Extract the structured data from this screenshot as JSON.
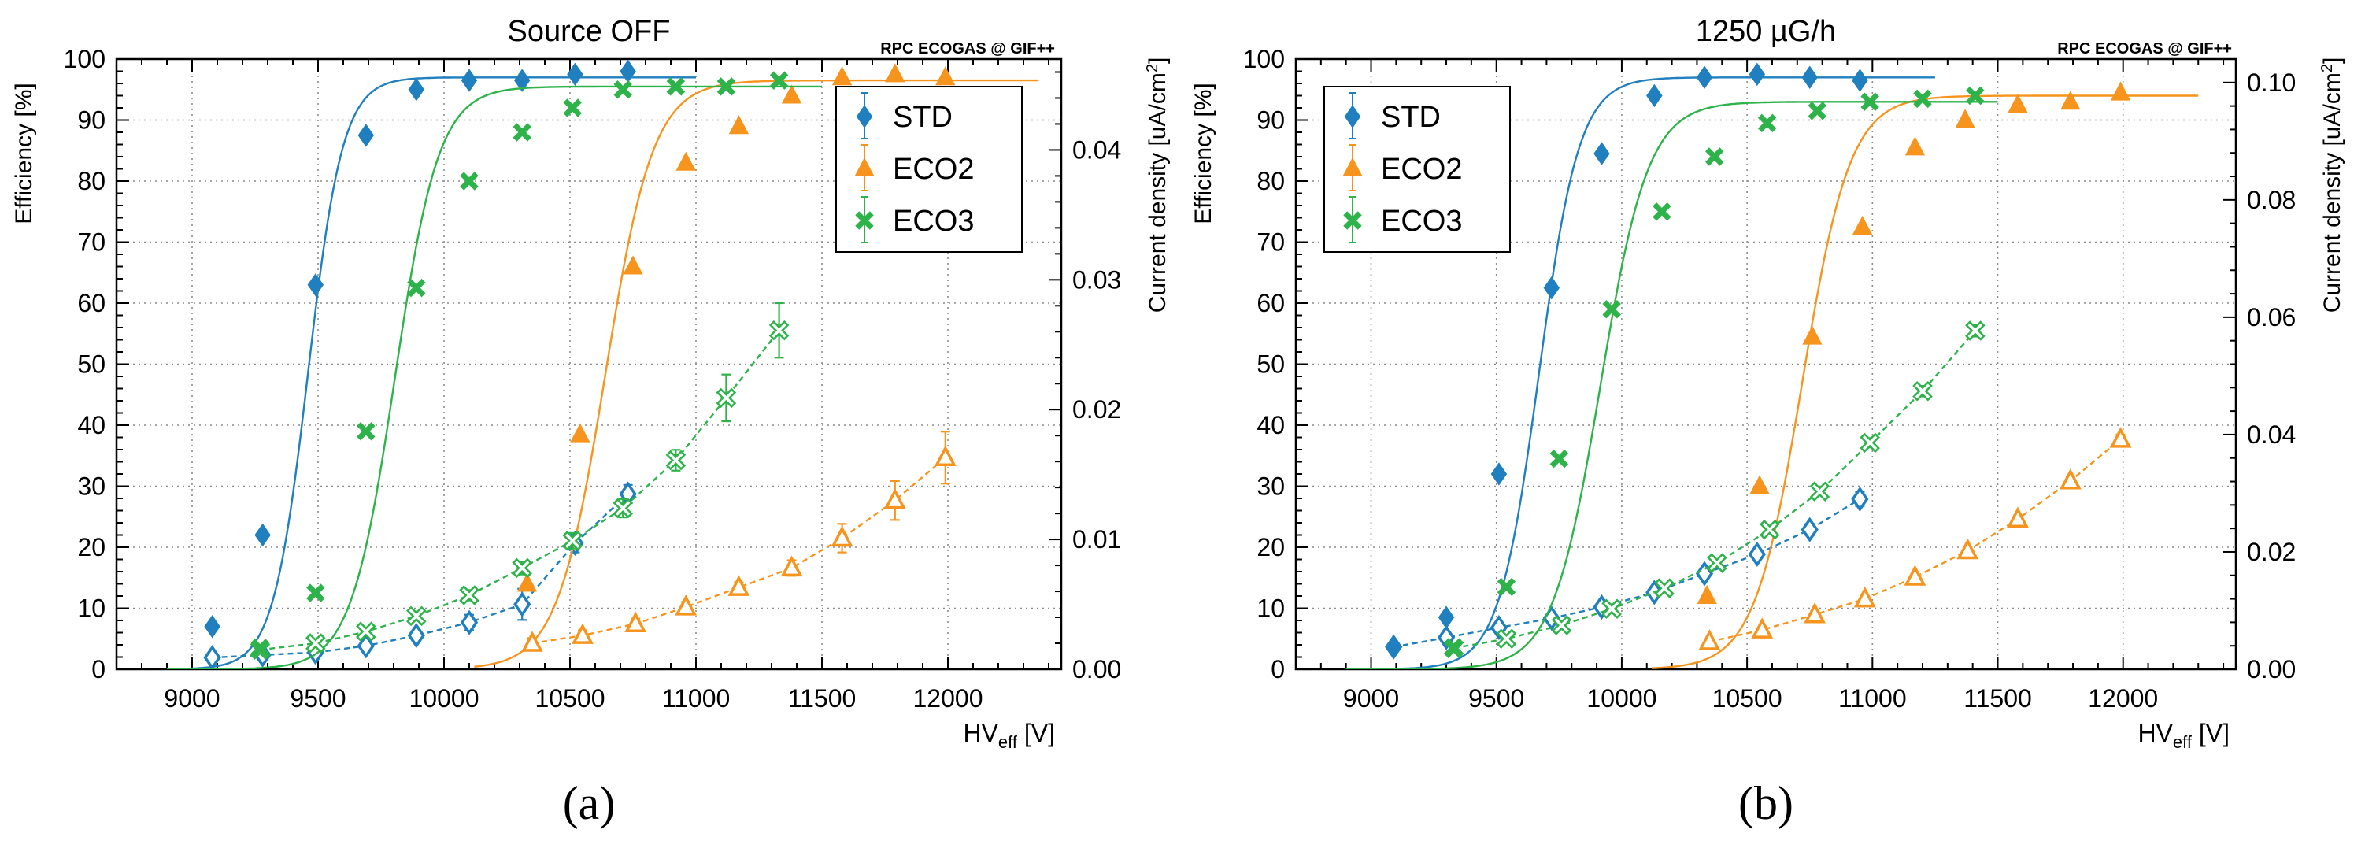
{
  "colors": {
    "std": "#1f7fbf",
    "eco2": "#f7941d",
    "eco3": "#2db34a",
    "grid": "#8c8c8c",
    "axis": "#000000"
  },
  "chart_data": [
    {
      "type": "scatter",
      "panel_label": "(a)",
      "title": "Source OFF",
      "watermark": "RPC ECOGAS @ GIF++",
      "xlabel": "HVeff [V]",
      "xlabel_main": "HV",
      "xlabel_sub": "eff",
      "xlabel_unit": " [V]",
      "ylabel": "Efficiency [%]",
      "y2label": "Current density [uA/cm2]",
      "y2label_main": "Current density [uA/cm",
      "y2label_sup": "2",
      "y2label_end": "]",
      "xlim": [
        8700,
        12450
      ],
      "ylim": [
        0,
        100
      ],
      "y2lim": [
        0,
        0.047
      ],
      "xticks": [
        9000,
        9500,
        10000,
        10500,
        11000,
        11500,
        12000
      ],
      "xtick_labels": [
        "9000",
        "9500",
        "10000",
        "10500",
        "11000",
        "11500",
        "12000"
      ],
      "yticks": [
        0,
        10,
        20,
        30,
        40,
        50,
        60,
        70,
        80,
        90,
        100
      ],
      "ytick_labels": [
        "0",
        "10",
        "20",
        "30",
        "40",
        "50",
        "60",
        "70",
        "80",
        "90",
        "100"
      ],
      "y2ticks": [
        0,
        0.01,
        0.02,
        0.03,
        0.04
      ],
      "y2tick_labels": [
        "0.00",
        "0.01",
        "0.02",
        "0.03",
        "0.04"
      ],
      "grid": true,
      "legend": {
        "position": "top-right",
        "entries": [
          "STD",
          "ECO2",
          "ECO3"
        ]
      },
      "series": [
        {
          "name": "STD",
          "color": "#1f7fbf",
          "marker": "diamond",
          "efficiency": {
            "x": [
              9080,
              9280,
              9490,
              9690,
              9890,
              10100,
              10310,
              10520,
              10730
            ],
            "y": [
              7,
              22,
              63,
              87.5,
              95,
              96.5,
              96.5,
              97.5,
              98
            ]
          },
          "fit": {
            "plateau": 97,
            "hv50": 9460,
            "lambda": 0.0145,
            "range": [
              8900,
              11000
            ]
          },
          "current": {
            "x": [
              9080,
              9280,
              9490,
              9690,
              9890,
              10100,
              10310,
              10520,
              10730
            ],
            "y": [
              0.0009,
              0.0011,
              0.0013,
              0.0018,
              0.0026,
              0.0036,
              0.005,
              0.0097,
              0.0135
            ],
            "err": [
              0.0003,
              0.0003,
              0.0003,
              0.0003,
              0.0004,
              0.0006,
              0.0012,
              0.0007,
              0.0007
            ]
          }
        },
        {
          "name": "ECO2",
          "color": "#f7941d",
          "marker": "triangle",
          "efficiency": {
            "x": [
              10330,
              10540,
              10750,
              10960,
              11170,
              11380,
              11580,
              11790,
              11990
            ],
            "y": [
              14,
              38.5,
              66,
              83,
              89,
              94,
              97,
              97.5,
              97
            ]
          },
          "fit": {
            "plateau": 96.5,
            "hv50": 10640,
            "lambda": 0.0105,
            "range": [
              10120,
              12360
            ]
          },
          "current": {
            "x": [
              10350,
              10550,
              10760,
              10960,
              11170,
              11380,
              11580,
              11790,
              11990
            ],
            "y": [
              0.002,
              0.0026,
              0.0035,
              0.0048,
              0.0063,
              0.0078,
              0.0101,
              0.013,
              0.0163
            ],
            "err": [
              0.0004,
              0.0004,
              0.0004,
              0.0004,
              0.0004,
              0.0006,
              0.0011,
              0.0015,
              0.002
            ]
          }
        },
        {
          "name": "ECO3",
          "color": "#2db34a",
          "marker": "cross",
          "efficiency": {
            "x": [
              9270,
              9490,
              9690,
              9890,
              10100,
              10310,
              10510,
              10710,
              10920,
              11120,
              11330
            ],
            "y": [
              3.5,
              12.5,
              39,
              62.5,
              80,
              88,
              92,
              95,
              95.5,
              95.5,
              96.5
            ]
          },
          "fit": {
            "plateau": 95.5,
            "hv50": 9805,
            "lambda": 0.0115,
            "range": [
              8900,
              11500
            ]
          },
          "current": {
            "x": [
              9270,
              9490,
              9690,
              9890,
              10100,
              10310,
              10510,
              10710,
              10920,
              11120,
              11330
            ],
            "y": [
              0.0015,
              0.002,
              0.0029,
              0.0041,
              0.0057,
              0.0078,
              0.0099,
              0.0124,
              0.0161,
              0.0209,
              0.0261
            ],
            "err": [
              0.0003,
              0.0003,
              0.0003,
              0.0003,
              0.0004,
              0.0005,
              0.0006,
              0.0007,
              0.0008,
              0.0018,
              0.0021
            ]
          }
        }
      ]
    },
    {
      "type": "scatter",
      "panel_label": "(b)",
      "title": "1250 µG/h",
      "watermark": "RPC ECOGAS @ GIF++",
      "xlabel": "HVeff [V]",
      "xlabel_main": "HV",
      "xlabel_sub": "eff",
      "xlabel_unit": " [V]",
      "ylabel": "Efficiency [%]",
      "y2label": "Current density [uA/cm2]",
      "y2label_main": "Current density [uA/cm",
      "y2label_sup": "2",
      "y2label_end": "]",
      "xlim": [
        8700,
        12450
      ],
      "ylim": [
        0,
        100
      ],
      "y2lim": [
        0,
        0.104
      ],
      "xticks": [
        9000,
        9500,
        10000,
        10500,
        11000,
        11500,
        12000
      ],
      "xtick_labels": [
        "9000",
        "9500",
        "10000",
        "10500",
        "11000",
        "11500",
        "12000"
      ],
      "yticks": [
        0,
        10,
        20,
        30,
        40,
        50,
        60,
        70,
        80,
        90,
        100
      ],
      "ytick_labels": [
        "0",
        "10",
        "20",
        "30",
        "40",
        "50",
        "60",
        "70",
        "80",
        "90",
        "100"
      ],
      "y2ticks": [
        0,
        0.02,
        0.04,
        0.06,
        0.08,
        0.1
      ],
      "y2tick_labels": [
        "0.00",
        "0.02",
        "0.04",
        "0.06",
        "0.08",
        "0.10"
      ],
      "grid": true,
      "legend": {
        "position": "top-left",
        "entries": [
          "STD",
          "ECO2",
          "ECO3"
        ]
      },
      "series": [
        {
          "name": "STD",
          "color": "#1f7fbf",
          "marker": "diamond",
          "efficiency": {
            "x": [
              9090,
              9300,
              9510,
              9720,
              9920,
              10130,
              10330,
              10540,
              10750,
              10950
            ],
            "y": [
              3.5,
              8.5,
              32,
              62.5,
              84.5,
              94,
              97,
              97.5,
              97,
              96.5
            ]
          },
          "fit": {
            "plateau": 97,
            "hv50": 9670,
            "lambda": 0.0125,
            "range": [
              8900,
              11250
            ]
          },
          "current": {
            "x": [
              9090,
              9300,
              9510,
              9720,
              9920,
              10130,
              10330,
              10540,
              10750,
              10950
            ],
            "y": [
              0.0038,
              0.0054,
              0.0071,
              0.0087,
              0.0106,
              0.0131,
              0.0163,
              0.0196,
              0.0238,
              0.029
            ],
            "err": [
              0.0003,
              0.0003,
              0.0004,
              0.0004,
              0.0004,
              0.0005,
              0.0006,
              0.0008,
              0.001,
              0.0012
            ]
          }
        },
        {
          "name": "ECO2",
          "color": "#f7941d",
          "marker": "triangle",
          "efficiency": {
            "x": [
              10340,
              10550,
              10760,
              10960,
              11170,
              11370,
              11580,
              11790,
              11990
            ],
            "y": [
              12,
              30,
              54.5,
              72.5,
              85.5,
              90,
              92.5,
              93,
              94.5
            ]
          },
          "fit": {
            "plateau": 94,
            "hv50": 10720,
            "lambda": 0.0105,
            "range": [
              10120,
              12300
            ]
          },
          "current": {
            "x": [
              10350,
              10560,
              10770,
              10970,
              11170,
              11380,
              11580,
              11790,
              11990
            ],
            "y": [
              0.0047,
              0.0067,
              0.0093,
              0.012,
              0.0157,
              0.0202,
              0.0256,
              0.0321,
              0.0392
            ],
            "err": [
              0.0003,
              0.0003,
              0.0003,
              0.0004,
              0.0004,
              0.0005,
              0.0006,
              0.0007,
              0.0008
            ]
          }
        },
        {
          "name": "ECO3",
          "color": "#2db34a",
          "marker": "cross",
          "efficiency": {
            "x": [
              9330,
              9540,
              9750,
              9960,
              10160,
              10370,
              10580,
              10780,
              10990,
              11200,
              11410
            ],
            "y": [
              3.5,
              13.5,
              34.5,
              59,
              75,
              84,
              89.5,
              91.5,
              93,
              93.5,
              94
            ]
          },
          "fit": {
            "plateau": 93,
            "hv50": 9915,
            "lambda": 0.0105,
            "range": [
              8900,
              11500
            ]
          },
          "current": {
            "x": [
              9330,
              9540,
              9760,
              9960,
              10170,
              10380,
              10590,
              10790,
              10990,
              11200,
              11410
            ],
            "y": [
              0.0036,
              0.0052,
              0.0075,
              0.0103,
              0.0138,
              0.0181,
              0.0238,
              0.0303,
              0.0386,
              0.0474,
              0.0577
            ],
            "err": [
              0.0003,
              0.0003,
              0.0003,
              0.0004,
              0.0004,
              0.0005,
              0.0006,
              0.0007,
              0.0008,
              0.0009,
              0.001
            ]
          }
        }
      ]
    }
  ]
}
